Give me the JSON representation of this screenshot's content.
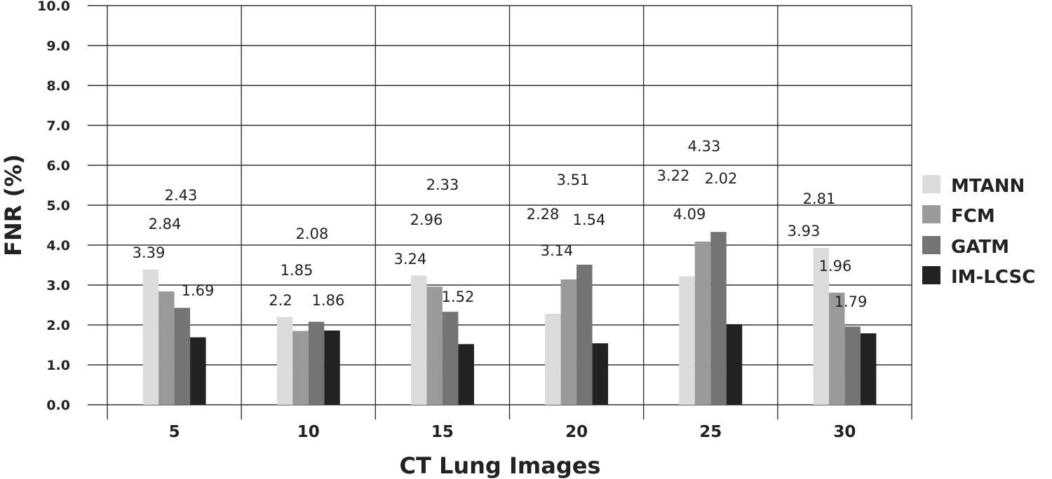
{
  "chart_data": {
    "type": "bar",
    "xlabel": "CT Lung Images",
    "ylabel": "FNR (%)",
    "categories": [
      "5",
      "10",
      "15",
      "20",
      "25",
      "30"
    ],
    "ylim": [
      0,
      10
    ],
    "yticks": [
      "0.0",
      "1.0",
      "2.0",
      "3.0",
      "4.0",
      "5.0",
      "6.0",
      "7.0",
      "8.0",
      "9.0",
      "10.0"
    ],
    "grid": true,
    "legend_position": "right",
    "series": [
      {
        "name": "MTANN",
        "color": "#dcdcdc",
        "values": [
          3.39,
          2.2,
          3.24,
          2.28,
          3.22,
          3.93
        ]
      },
      {
        "name": "FCM",
        "color": "#9a9a9a",
        "values": [
          2.84,
          1.85,
          2.96,
          3.14,
          4.09,
          2.81
        ]
      },
      {
        "name": "GATM",
        "color": "#747474",
        "values": [
          2.43,
          2.08,
          2.33,
          3.51,
          4.33,
          1.96
        ]
      },
      {
        "name": "IM-LCSC",
        "color": "#222222",
        "values": [
          1.69,
          1.86,
          1.52,
          1.54,
          2.02,
          1.79
        ]
      }
    ],
    "data_labels": [
      [
        "3.39",
        "2.84",
        "2.43",
        "1.69"
      ],
      [
        "2.2",
        "1.85",
        "2.08",
        "1.86"
      ],
      [
        "3.24",
        "2.96",
        "2.33",
        "1.52"
      ],
      [
        "2.28",
        "3.14",
        "3.51",
        "1.54"
      ],
      [
        "3.22",
        "4.09",
        "4.33",
        "2.02"
      ],
      [
        "3.93",
        "2.81",
        "1.96",
        "1.79"
      ]
    ]
  }
}
